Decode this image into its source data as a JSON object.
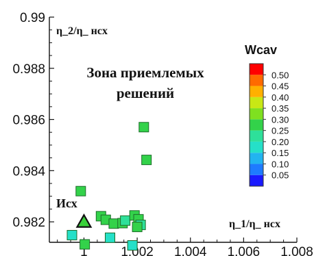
{
  "chart_data": {
    "type": "scatter",
    "xlabel": "η_1/η_ нcx",
    "ylabel": "η_2/η_ нcx",
    "xlim": [
      0.9987,
      1.008
    ],
    "ylim": [
      0.9812,
      0.99
    ],
    "x_ticks": [
      1,
      1.002,
      1.004,
      1.006,
      1.008
    ],
    "x_tick_labels": [
      "1",
      "1.002",
      "1.004",
      "1.006",
      "1.008"
    ],
    "y_ticks": [
      0.982,
      0.984,
      0.986,
      0.988,
      0.99
    ],
    "y_tick_labels": [
      "0.982",
      "0.984",
      "0.986",
      "0.988",
      "0.99"
    ],
    "grid": false,
    "annotation": [
      "Зона приемлемых",
      "решений"
    ],
    "reference_point": {
      "label": "Исх",
      "x": 1.0,
      "y": 0.982,
      "marker": "triangle",
      "color": "#39d23a"
    },
    "colorbar": {
      "title": "Wcav",
      "levels": [
        0.05,
        0.1,
        0.15,
        0.2,
        0.25,
        0.3,
        0.35,
        0.4,
        0.45,
        0.5
      ],
      "labels": [
        "0.05",
        "0.10",
        "0.15",
        "0.20",
        "0.25",
        "0.30",
        "0.35",
        "0.40",
        "0.45",
        "0.50"
      ],
      "colors": [
        "#1a1aff",
        "#1e7bff",
        "#22b4f0",
        "#25e0c8",
        "#2ee09a",
        "#33d24a",
        "#7fe020",
        "#c8e815",
        "#ffb000",
        "#ff6a00",
        "#ff0000"
      ]
    },
    "points": [
      {
        "x": 0.99955,
        "y": 0.98148,
        "color": "#25e0c8"
      },
      {
        "x": 0.99988,
        "y": 0.9832,
        "color": "#33d24a"
      },
      {
        "x": 1.00003,
        "y": 0.98112,
        "color": "#33d24a"
      },
      {
        "x": 1.00064,
        "y": 0.98222,
        "color": "#33d24a"
      },
      {
        "x": 1.00082,
        "y": 0.98208,
        "color": "#33d24a"
      },
      {
        "x": 1.00098,
        "y": 0.98138,
        "color": "#25e0c8"
      },
      {
        "x": 1.00112,
        "y": 0.98193,
        "color": "#33d24a"
      },
      {
        "x": 1.00145,
        "y": 0.98195,
        "color": "#33d24a"
      },
      {
        "x": 1.00155,
        "y": 0.98205,
        "color": "#2ee09a"
      },
      {
        "x": 1.00182,
        "y": 0.98108,
        "color": "#25e0c8"
      },
      {
        "x": 1.0019,
        "y": 0.98225,
        "color": "#33d24a"
      },
      {
        "x": 1.00205,
        "y": 0.9821,
        "color": "#33d24a"
      },
      {
        "x": 1.00213,
        "y": 0.98188,
        "color": "#2ee09a"
      },
      {
        "x": 1.002,
        "y": 0.9818,
        "color": "#33d24a"
      },
      {
        "x": 1.00225,
        "y": 0.9857,
        "color": "#33d24a"
      },
      {
        "x": 1.00235,
        "y": 0.98442,
        "color": "#33d24a"
      }
    ]
  }
}
